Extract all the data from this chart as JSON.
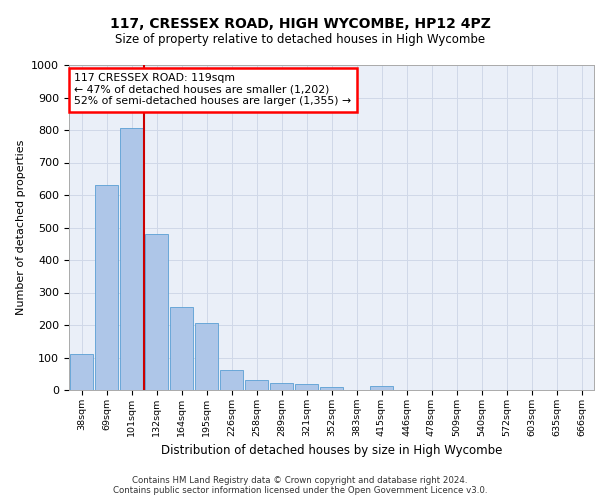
{
  "title_line1": "117, CRESSEX ROAD, HIGH WYCOMBE, HP12 4PZ",
  "title_line2": "Size of property relative to detached houses in High Wycombe",
  "xlabel": "Distribution of detached houses by size in High Wycombe",
  "ylabel": "Number of detached properties",
  "footer_line1": "Contains HM Land Registry data © Crown copyright and database right 2024.",
  "footer_line2": "Contains public sector information licensed under the Open Government Licence v3.0.",
  "categories": [
    "38sqm",
    "69sqm",
    "101sqm",
    "132sqm",
    "164sqm",
    "195sqm",
    "226sqm",
    "258sqm",
    "289sqm",
    "321sqm",
    "352sqm",
    "383sqm",
    "415sqm",
    "446sqm",
    "478sqm",
    "509sqm",
    "540sqm",
    "572sqm",
    "603sqm",
    "635sqm",
    "666sqm"
  ],
  "values": [
    110,
    630,
    805,
    480,
    255,
    205,
    63,
    30,
    22,
    17,
    10,
    0,
    13,
    0,
    0,
    0,
    0,
    0,
    0,
    0,
    0
  ],
  "bar_color": "#aec6e8",
  "bar_edge_color": "#5a9fd4",
  "highlight_color": "#cc0000",
  "highlight_index": 2,
  "annotation_text": "117 CRESSEX ROAD: 119sqm\n← 47% of detached houses are smaller (1,202)\n52% of semi-detached houses are larger (1,355) →",
  "ylim": [
    0,
    1000
  ],
  "yticks": [
    0,
    100,
    200,
    300,
    400,
    500,
    600,
    700,
    800,
    900,
    1000
  ],
  "grid_color": "#d0d8e8",
  "plot_bg_color": "#eaeff8"
}
